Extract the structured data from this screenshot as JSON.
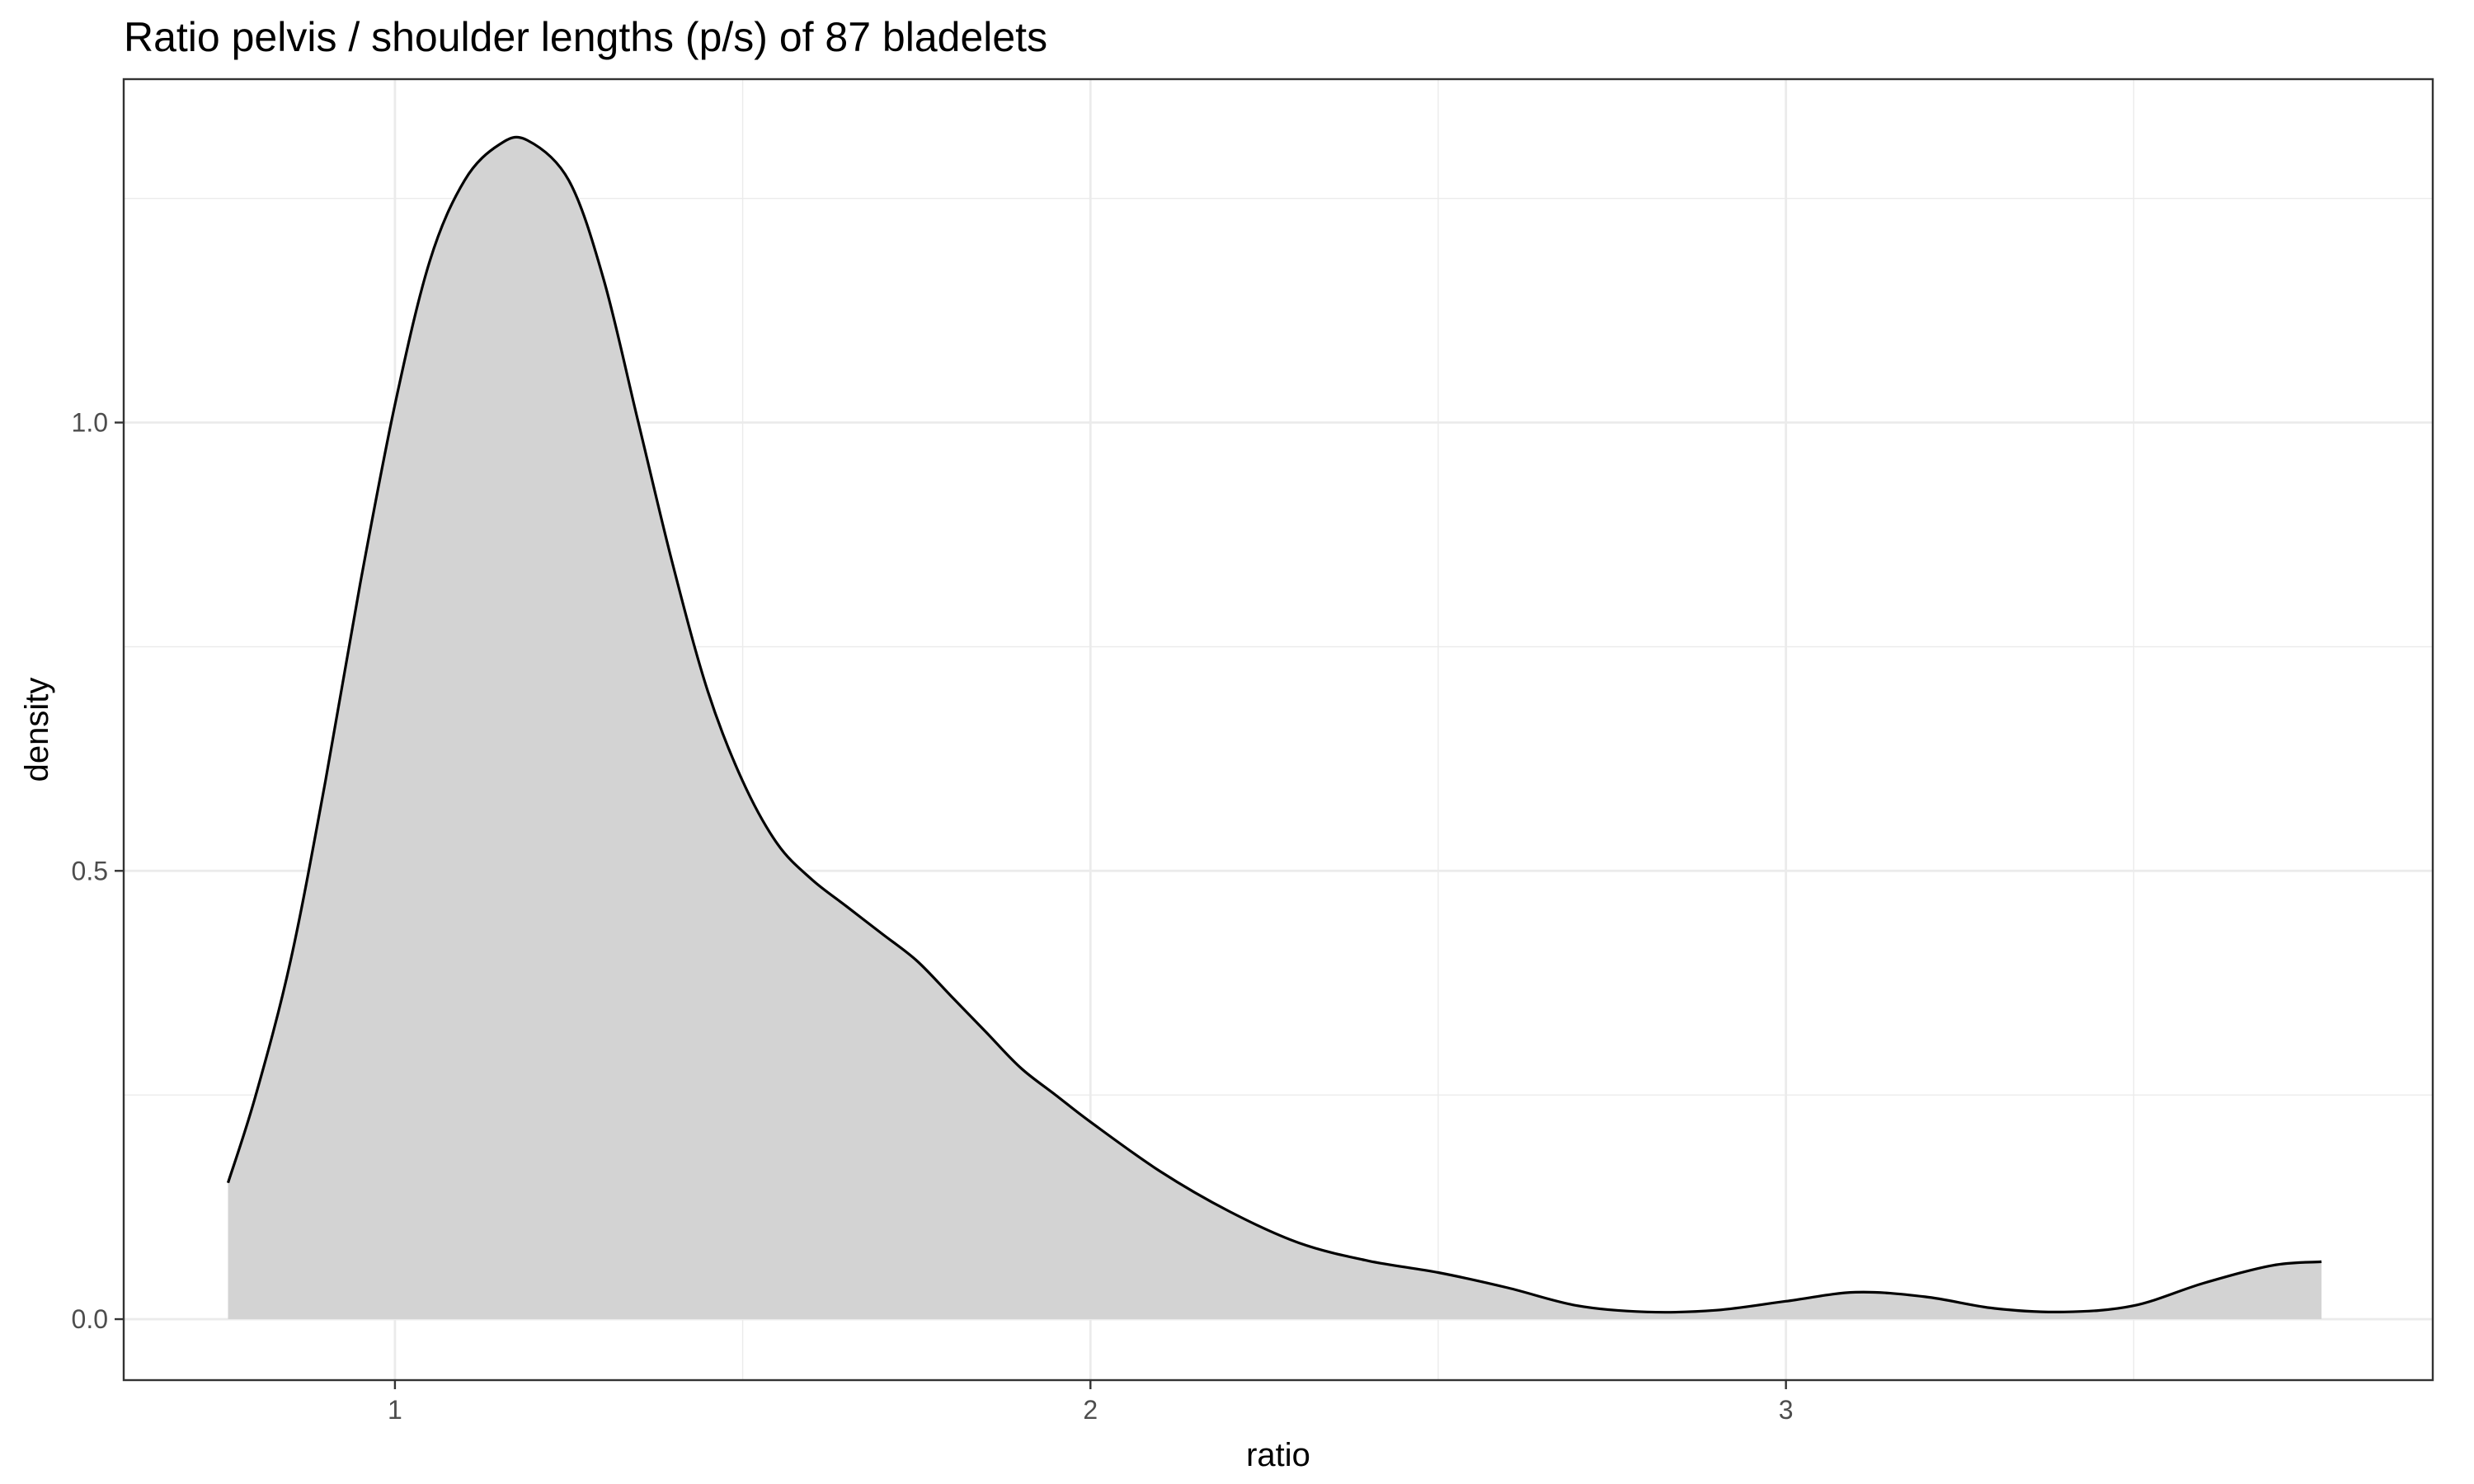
{
  "chart_data": {
    "type": "area",
    "title": "Ratio pelvis / shoulder lengths (p/s) of 87 bladelets",
    "xlabel": "ratio",
    "ylabel": "density",
    "xlim": [
      0.61,
      3.93
    ],
    "ylim": [
      -0.068,
      1.383
    ],
    "x_ticks": [
      1,
      2,
      3
    ],
    "x_tick_labels": [
      "1",
      "2",
      "3"
    ],
    "y_ticks": [
      0.0,
      0.5,
      1.0
    ],
    "y_tick_labels": [
      "0.0",
      "0.5",
      "1.0"
    ],
    "x_minor_ticks": [
      1.5,
      2.5,
      3.5
    ],
    "y_minor_ticks": [
      0.25,
      0.75,
      1.25
    ],
    "grid": true,
    "legend": "none",
    "fill_color": "#d3d3d3",
    "line_color": "#000000",
    "series": [
      {
        "x": [
          0.76,
          0.8,
          0.85,
          0.9,
          0.95,
          1.0,
          1.05,
          1.1,
          1.15,
          1.19,
          1.25,
          1.3,
          1.35,
          1.4,
          1.45,
          1.5,
          1.55,
          1.6,
          1.65,
          1.7,
          1.75,
          1.8,
          1.85,
          1.9,
          1.95,
          2.0,
          2.1,
          2.2,
          2.3,
          2.4,
          2.5,
          2.6,
          2.7,
          2.8,
          2.9,
          3.0,
          3.1,
          3.2,
          3.3,
          3.4,
          3.5,
          3.6,
          3.7,
          3.77
        ],
        "y": [
          0.152,
          0.25,
          0.4,
          0.6,
          0.82,
          1.02,
          1.18,
          1.27,
          1.31,
          1.315,
          1.27,
          1.16,
          1.0,
          0.84,
          0.7,
          0.6,
          0.53,
          0.49,
          0.46,
          0.43,
          0.4,
          0.36,
          0.32,
          0.28,
          0.25,
          0.22,
          0.165,
          0.12,
          0.085,
          0.065,
          0.052,
          0.035,
          0.015,
          0.008,
          0.01,
          0.02,
          0.03,
          0.025,
          0.012,
          0.008,
          0.015,
          0.04,
          0.06,
          0.064
        ]
      }
    ]
  }
}
